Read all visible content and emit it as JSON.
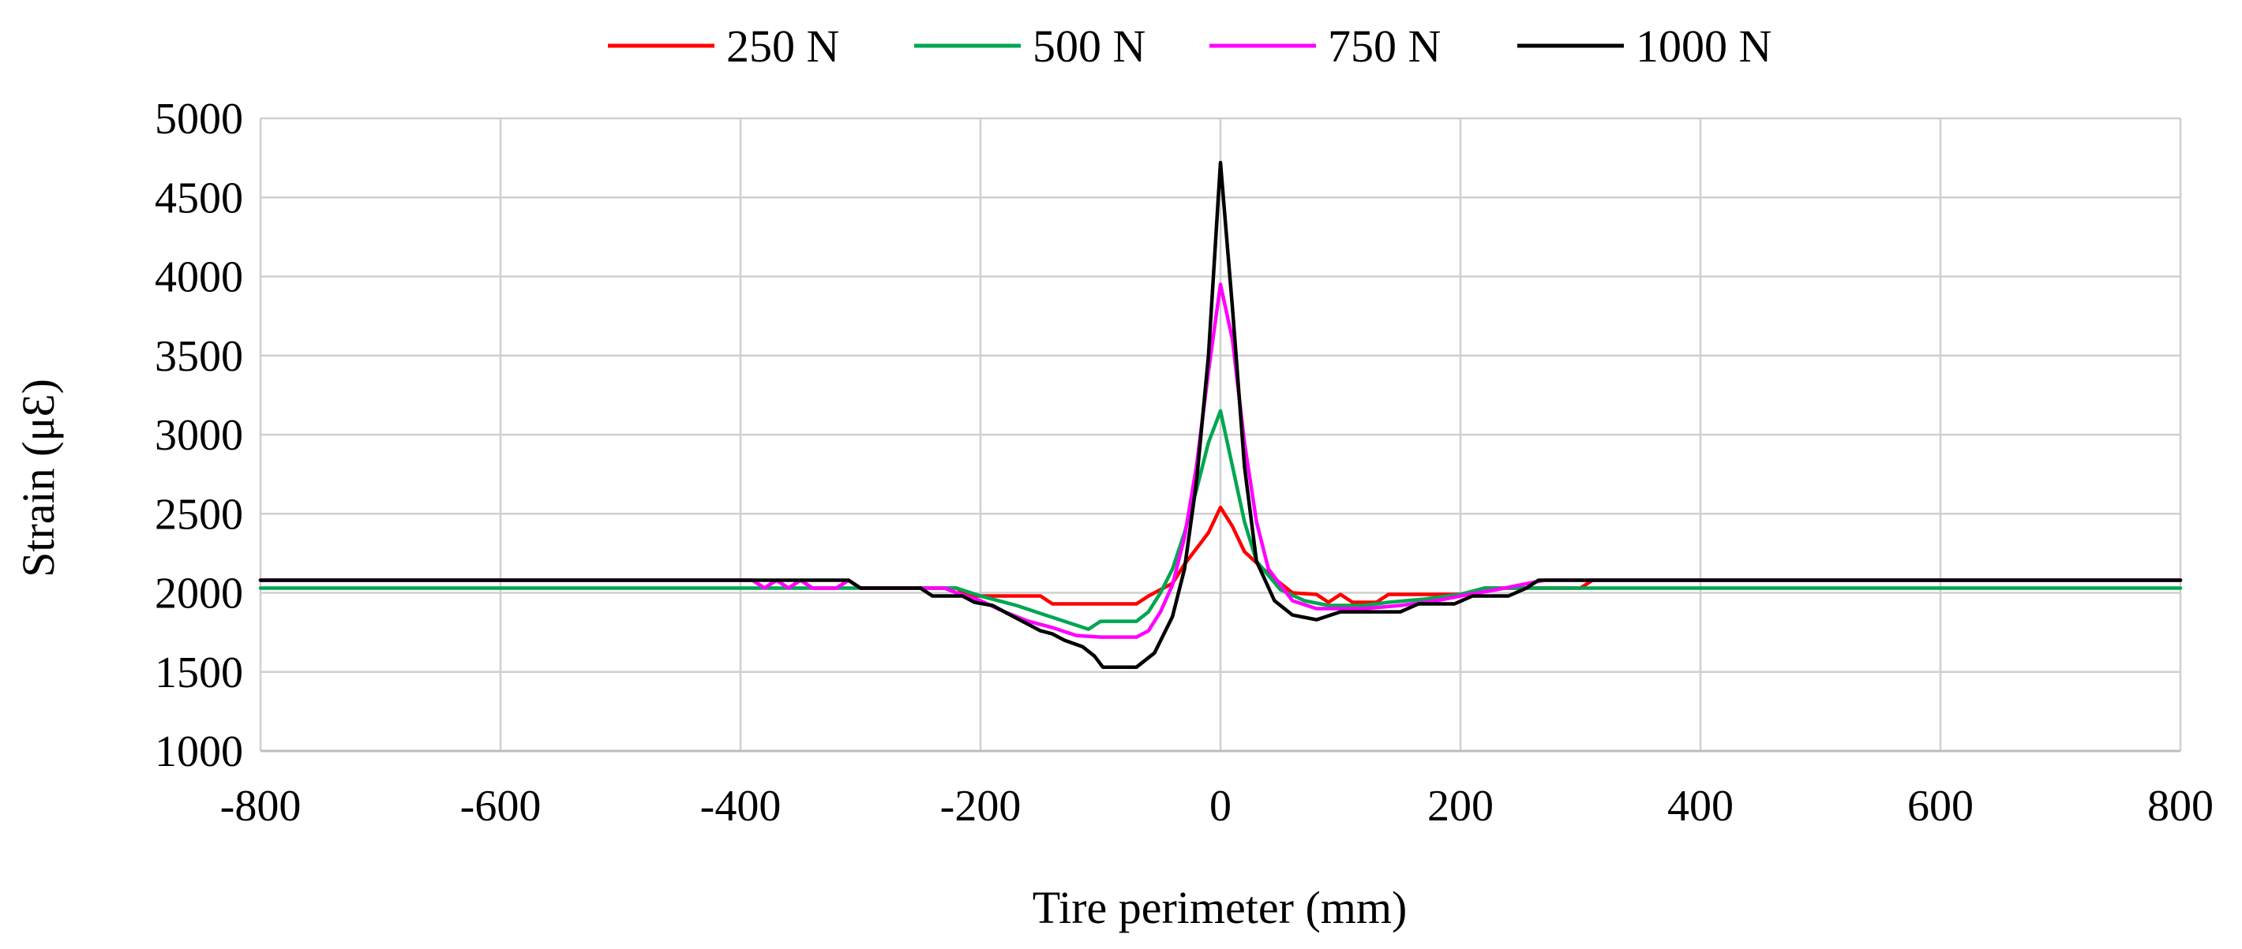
{
  "chart_data": {
    "type": "line",
    "title": "",
    "xlabel": "Tire perimeter (mm)",
    "ylabel": "Strain (μƐ)",
    "xlim": [
      -800,
      800
    ],
    "ylim": [
      1000,
      5000
    ],
    "xticks": [
      -800,
      -600,
      -400,
      -200,
      0,
      200,
      400,
      600,
      800
    ],
    "yticks": [
      1000,
      1500,
      2000,
      2500,
      3000,
      3500,
      4000,
      4500,
      5000
    ],
    "grid": true,
    "legend_position": "top",
    "series": [
      {
        "name": "250 N",
        "color": "#ff0000",
        "points": [
          [
            -800,
            2080
          ],
          [
            -390,
            2080
          ],
          [
            -380,
            2030
          ],
          [
            -370,
            2080
          ],
          [
            -360,
            2030
          ],
          [
            -350,
            2080
          ],
          [
            -340,
            2030
          ],
          [
            -320,
            2030
          ],
          [
            -310,
            2080
          ],
          [
            -300,
            2030
          ],
          [
            -220,
            2030
          ],
          [
            -210,
            1980
          ],
          [
            -150,
            1980
          ],
          [
            -140,
            1930
          ],
          [
            -70,
            1930
          ],
          [
            -60,
            1980
          ],
          [
            -40,
            2060
          ],
          [
            -30,
            2180
          ],
          [
            -20,
            2280
          ],
          [
            -10,
            2380
          ],
          [
            0,
            2540
          ],
          [
            10,
            2420
          ],
          [
            20,
            2260
          ],
          [
            40,
            2120
          ],
          [
            60,
            2000
          ],
          [
            80,
            1990
          ],
          [
            90,
            1940
          ],
          [
            100,
            1990
          ],
          [
            110,
            1940
          ],
          [
            130,
            1940
          ],
          [
            140,
            1990
          ],
          [
            160,
            1990
          ],
          [
            200,
            1990
          ],
          [
            220,
            2030
          ],
          [
            300,
            2030
          ],
          [
            310,
            2080
          ],
          [
            800,
            2080
          ]
        ]
      },
      {
        "name": "500 N",
        "color": "#00a651",
        "points": [
          [
            -800,
            2030
          ],
          [
            -390,
            2030
          ],
          [
            -230,
            2030
          ],
          [
            -220,
            2030
          ],
          [
            -200,
            1980
          ],
          [
            -170,
            1920
          ],
          [
            -150,
            1870
          ],
          [
            -130,
            1820
          ],
          [
            -110,
            1770
          ],
          [
            -100,
            1820
          ],
          [
            -70,
            1820
          ],
          [
            -60,
            1880
          ],
          [
            -50,
            2000
          ],
          [
            -40,
            2150
          ],
          [
            -30,
            2380
          ],
          [
            -20,
            2650
          ],
          [
            -10,
            2950
          ],
          [
            0,
            3150
          ],
          [
            10,
            2800
          ],
          [
            20,
            2450
          ],
          [
            30,
            2200
          ],
          [
            50,
            2020
          ],
          [
            70,
            1950
          ],
          [
            90,
            1920
          ],
          [
            120,
            1920
          ],
          [
            140,
            1940
          ],
          [
            170,
            1960
          ],
          [
            200,
            1990
          ],
          [
            220,
            2030
          ],
          [
            800,
            2030
          ]
        ]
      },
      {
        "name": "750 N",
        "color": "#ff00ff",
        "points": [
          [
            -800,
            2080
          ],
          [
            -390,
            2080
          ],
          [
            -380,
            2030
          ],
          [
            -370,
            2080
          ],
          [
            -360,
            2030
          ],
          [
            -350,
            2080
          ],
          [
            -340,
            2030
          ],
          [
            -320,
            2030
          ],
          [
            -310,
            2080
          ],
          [
            -300,
            2030
          ],
          [
            -230,
            2030
          ],
          [
            -220,
            2000
          ],
          [
            -200,
            1950
          ],
          [
            -180,
            1880
          ],
          [
            -160,
            1820
          ],
          [
            -140,
            1780
          ],
          [
            -120,
            1730
          ],
          [
            -100,
            1720
          ],
          [
            -70,
            1720
          ],
          [
            -60,
            1760
          ],
          [
            -50,
            1880
          ],
          [
            -40,
            2050
          ],
          [
            -30,
            2350
          ],
          [
            -20,
            2800
          ],
          [
            -10,
            3400
          ],
          [
            0,
            3950
          ],
          [
            10,
            3600
          ],
          [
            20,
            2950
          ],
          [
            30,
            2450
          ],
          [
            40,
            2150
          ],
          [
            60,
            1950
          ],
          [
            80,
            1900
          ],
          [
            120,
            1900
          ],
          [
            150,
            1920
          ],
          [
            180,
            1950
          ],
          [
            200,
            1980
          ],
          [
            230,
            2020
          ],
          [
            250,
            2050
          ],
          [
            270,
            2080
          ],
          [
            300,
            2080
          ],
          [
            800,
            2080
          ]
        ]
      },
      {
        "name": "1000 N",
        "color": "#000000",
        "points": [
          [
            -800,
            2080
          ],
          [
            -320,
            2080
          ],
          [
            -310,
            2080
          ],
          [
            -300,
            2030
          ],
          [
            -250,
            2030
          ],
          [
            -240,
            1980
          ],
          [
            -215,
            1980
          ],
          [
            -205,
            1940
          ],
          [
            -190,
            1920
          ],
          [
            -180,
            1880
          ],
          [
            -170,
            1840
          ],
          [
            -160,
            1800
          ],
          [
            -150,
            1760
          ],
          [
            -140,
            1740
          ],
          [
            -130,
            1700
          ],
          [
            -115,
            1660
          ],
          [
            -105,
            1600
          ],
          [
            -98,
            1530
          ],
          [
            -70,
            1530
          ],
          [
            -55,
            1620
          ],
          [
            -40,
            1850
          ],
          [
            -30,
            2150
          ],
          [
            -20,
            2700
          ],
          [
            -10,
            3500
          ],
          [
            0,
            4720
          ],
          [
            10,
            3800
          ],
          [
            20,
            2800
          ],
          [
            30,
            2200
          ],
          [
            45,
            1950
          ],
          [
            60,
            1860
          ],
          [
            80,
            1830
          ],
          [
            100,
            1880
          ],
          [
            150,
            1880
          ],
          [
            165,
            1930
          ],
          [
            195,
            1930
          ],
          [
            210,
            1980
          ],
          [
            240,
            1980
          ],
          [
            255,
            2030
          ],
          [
            265,
            2080
          ],
          [
            800,
            2080
          ]
        ]
      }
    ]
  }
}
